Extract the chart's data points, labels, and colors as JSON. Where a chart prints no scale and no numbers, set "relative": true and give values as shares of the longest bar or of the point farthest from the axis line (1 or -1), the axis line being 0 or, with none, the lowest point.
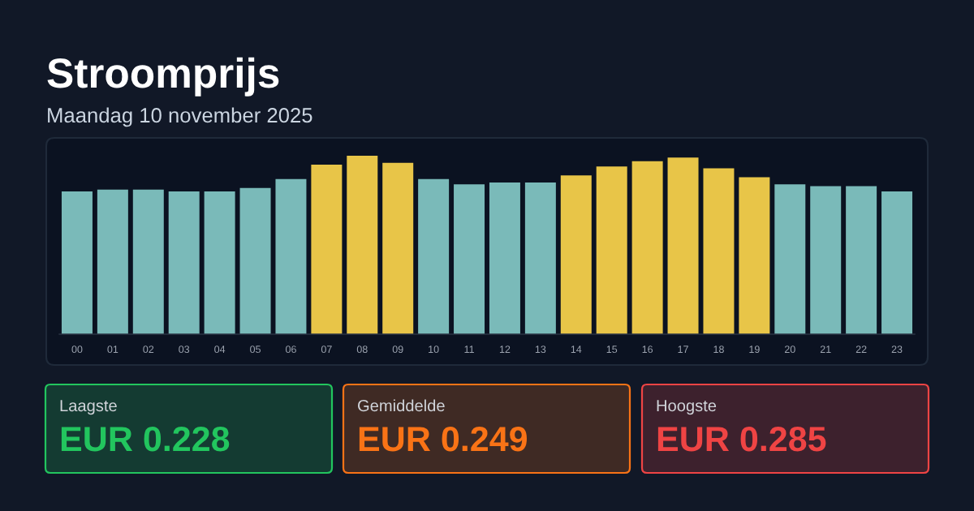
{
  "chart_data": [
    {
      "type": "bar",
      "title": "Stroomprijs",
      "subtitle": "Maandag 10 november 2025",
      "relative": true,
      "categories": [
        "00",
        "01",
        "02",
        "03",
        "04",
        "05",
        "06",
        "07",
        "08",
        "09",
        "10",
        "11",
        "12",
        "13",
        "14",
        "15",
        "16",
        "17",
        "18",
        "19",
        "20",
        "21",
        "22",
        "23"
      ],
      "values": [
        0.8,
        0.81,
        0.81,
        0.8,
        0.8,
        0.82,
        0.87,
        0.95,
        1,
        0.96,
        0.87,
        0.84,
        0.85,
        0.85,
        0.89,
        0.94,
        0.97,
        0.99,
        0.93,
        0.88,
        0.84,
        0.83,
        0.83,
        0.8
      ],
      "colors": [
        "#7abab9",
        "#7abab9",
        "#7abab9",
        "#7abab9",
        "#7abab9",
        "#7abab9",
        "#7abab9",
        "#e8c548",
        "#e8c548",
        "#e8c548",
        "#7abab9",
        "#7abab9",
        "#7abab9",
        "#7abab9",
        "#e8c548",
        "#e8c548",
        "#e8c548",
        "#e8c548",
        "#e8c548",
        "#e8c548",
        "#7abab9",
        "#7abab9",
        "#7abab9",
        "#7abab9"
      ]
    },
    {
      "type": "other",
      "title": "Laagste",
      "annotations": [
        "EUR 0.228"
      ],
      "color": "#22c55e"
    },
    {
      "type": "other",
      "title": "Gemiddelde",
      "annotations": [
        "EUR 0.249"
      ],
      "color": "#f97316"
    },
    {
      "type": "other",
      "title": "Hoogste",
      "annotations": [
        "EUR 0.285"
      ],
      "color": "#ef4444"
    }
  ]
}
